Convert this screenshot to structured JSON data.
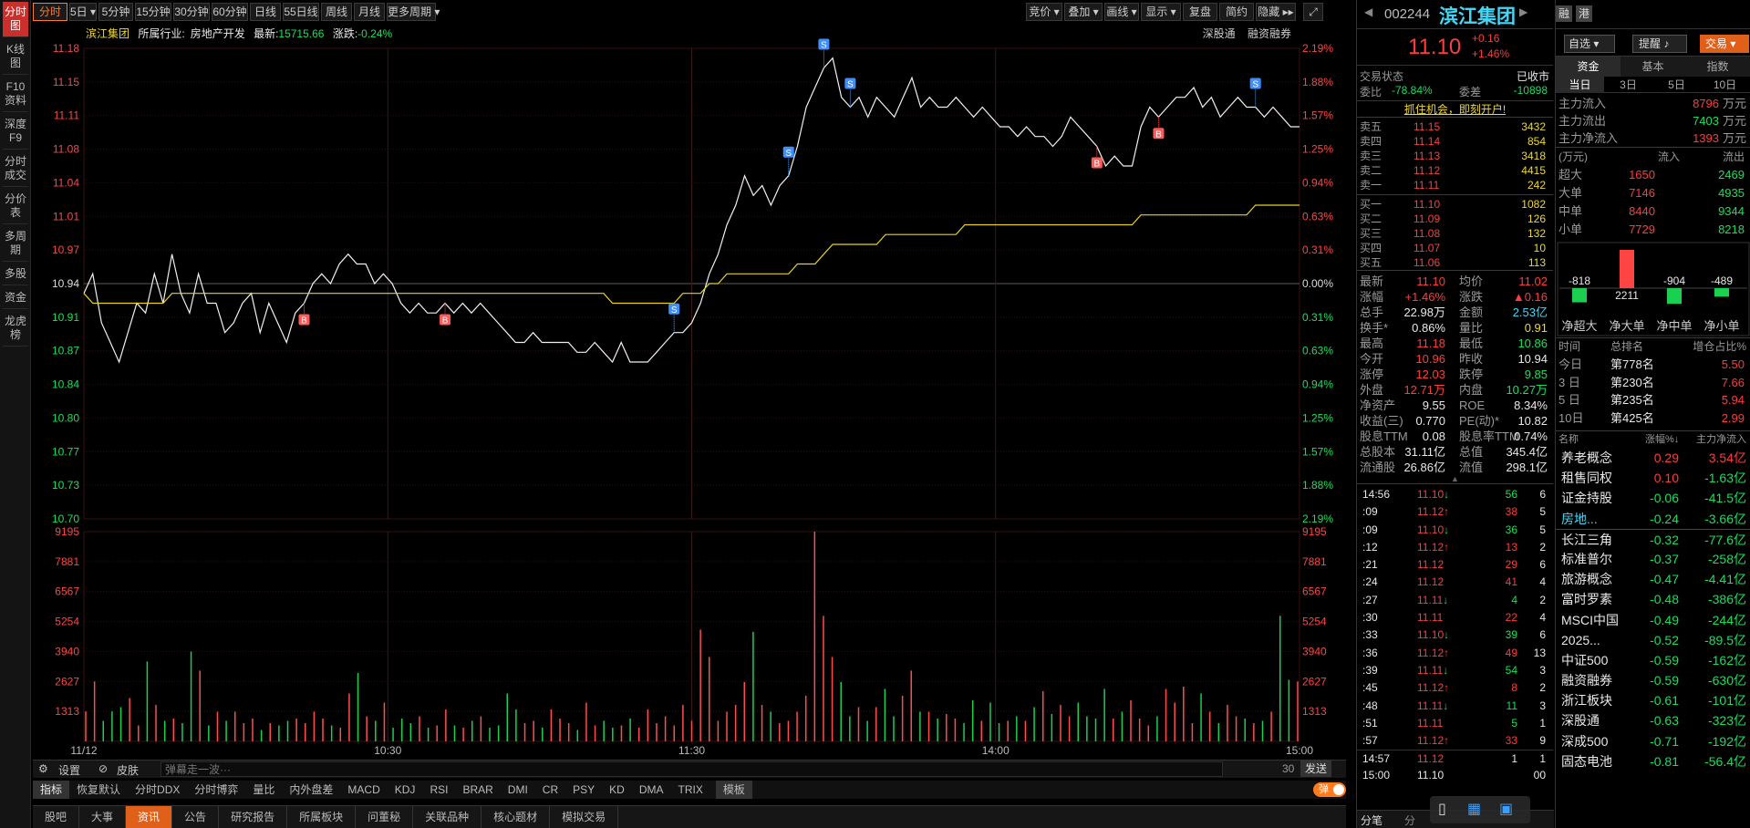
{
  "left_nav": [
    "分时图",
    "K线图",
    "F10资料",
    "深度F9",
    "分时成交",
    "分价表",
    "多周期",
    "多股",
    "资金",
    "龙虎榜"
  ],
  "top_tabs": [
    "分时",
    "5日",
    "5分钟",
    "15分钟",
    "30分钟",
    "60分钟",
    "日线",
    "55日线",
    "周线",
    "月线",
    "更多周期"
  ],
  "top_right": [
    "竞价",
    "叠加",
    "画线",
    "显示",
    "复盘",
    "简约",
    "隐藏"
  ],
  "info": {
    "name": "滨江集团",
    "industry_label": "所属行业:",
    "industry": "房地产开发",
    "latest_label": "最新:",
    "latest": "15715.66",
    "chg_label": "涨跌:",
    "chg": "-0.24%"
  },
  "chart_links": [
    "深股通",
    "融资融券"
  ],
  "chart_data": {
    "type": "line",
    "title": "",
    "price_ticks": [
      "11.18",
      "11.15",
      "11.11",
      "11.08",
      "11.04",
      "11.01",
      "10.97",
      "10.94",
      "10.91",
      "10.87",
      "10.84",
      "10.80",
      "10.77",
      "10.73",
      "10.70"
    ],
    "pct_ticks": [
      "2.19%",
      "1.88%",
      "1.57%",
      "1.25%",
      "0.94%",
      "0.63%",
      "0.31%",
      "0.00%",
      "0.31%",
      "0.63%",
      "0.94%",
      "1.25%",
      "1.57%",
      "1.88%",
      "2.19%"
    ],
    "prev_close": 10.94,
    "ylim": [
      10.7,
      11.18
    ],
    "vol_ticks": [
      "9195",
      "7881",
      "6567",
      "5254",
      "3940",
      "2627",
      "1313"
    ],
    "vol_ylim": [
      0,
      9195
    ],
    "time_labels": [
      "11/12",
      "10:30",
      "11:30",
      "14:00",
      "15:00"
    ],
    "price_series": [
      10.93,
      10.95,
      10.9,
      10.88,
      10.86,
      10.89,
      10.92,
      10.91,
      10.95,
      10.92,
      10.97,
      10.93,
      10.91,
      10.95,
      10.92,
      10.92,
      10.89,
      10.9,
      10.92,
      10.93,
      10.89,
      10.92,
      10.9,
      10.88,
      10.91,
      10.92,
      10.94,
      10.95,
      10.94,
      10.96,
      10.97,
      10.96,
      10.96,
      10.94,
      10.95,
      10.94,
      10.92,
      10.91,
      10.92,
      10.91,
      10.91,
      10.92,
      10.91,
      10.92,
      10.91,
      10.92,
      10.91,
      10.9,
      10.89,
      10.88,
      10.88,
      10.89,
      10.88,
      10.88,
      10.88,
      10.88,
      10.87,
      10.87,
      10.88,
      10.87,
      10.86,
      10.88,
      10.86,
      10.86,
      10.86,
      10.87,
      10.88,
      10.89,
      10.89,
      10.9,
      10.92,
      10.95,
      10.97,
      11.0,
      11.02,
      11.05,
      11.03,
      11.04,
      11.02,
      11.04,
      11.05,
      11.08,
      11.12,
      11.14,
      11.16,
      11.17,
      11.13,
      11.12,
      11.13,
      11.11,
      11.13,
      11.12,
      11.11,
      11.13,
      11.15,
      11.12,
      11.13,
      11.12,
      11.12,
      11.13,
      11.12,
      11.11,
      11.12,
      11.11,
      11.1,
      11.1,
      11.09,
      11.1,
      11.09,
      11.09,
      11.08,
      11.09,
      11.11,
      11.1,
      11.09,
      11.08,
      11.06,
      11.07,
      11.06,
      11.06,
      11.1,
      11.12,
      11.11,
      11.12,
      11.13,
      11.13,
      11.14,
      11.12,
      11.13,
      11.11,
      11.12,
      11.13,
      11.12,
      11.12,
      11.11,
      11.12,
      11.11,
      11.1,
      11.1
    ],
    "avg_series": [
      10.93,
      10.92,
      10.92,
      10.92,
      10.92,
      10.92,
      10.92,
      10.92,
      10.92,
      10.92,
      10.93,
      10.93,
      10.93,
      10.93,
      10.93,
      10.93,
      10.93,
      10.93,
      10.93,
      10.93,
      10.93,
      10.93,
      10.93,
      10.93,
      10.93,
      10.93,
      10.93,
      10.93,
      10.93,
      10.93,
      10.93,
      10.93,
      10.93,
      10.93,
      10.93,
      10.93,
      10.93,
      10.93,
      10.93,
      10.93,
      10.93,
      10.93,
      10.93,
      10.93,
      10.93,
      10.93,
      10.93,
      10.93,
      10.93,
      10.93,
      10.93,
      10.93,
      10.93,
      10.93,
      10.93,
      10.93,
      10.93,
      10.93,
      10.93,
      10.93,
      10.92,
      10.92,
      10.92,
      10.92,
      10.92,
      10.92,
      10.92,
      10.92,
      10.93,
      10.93,
      10.93,
      10.94,
      10.94,
      10.95,
      10.95,
      10.95,
      10.95,
      10.95,
      10.95,
      10.95,
      10.95,
      10.96,
      10.96,
      10.96,
      10.97,
      10.98,
      10.98,
      10.98,
      10.98,
      10.98,
      10.98,
      10.99,
      10.99,
      10.99,
      10.99,
      10.99,
      10.99,
      10.99,
      10.99,
      10.99,
      11.0,
      11.0,
      11.0,
      11.0,
      11.0,
      11.0,
      11.0,
      11.0,
      11.0,
      11.0,
      11.0,
      11.0,
      11.0,
      11.0,
      11.0,
      11.0,
      11.0,
      11.0,
      11.0,
      11.0,
      11.01,
      11.01,
      11.01,
      11.01,
      11.01,
      11.01,
      11.01,
      11.01,
      11.01,
      11.01,
      11.01,
      11.01,
      11.01,
      11.02,
      11.02,
      11.02,
      11.02,
      11.02,
      11.02
    ],
    "volume_series": [
      1313,
      2627,
      900,
      1313,
      1500,
      1900,
      700,
      3500,
      1600,
      900,
      1000,
      800,
      3940,
      3100,
      700,
      1300,
      900,
      1300,
      800,
      1000,
      500,
      800,
      700,
      900,
      1000,
      800,
      1300,
      1000,
      700,
      600,
      2100,
      3000,
      1100,
      900,
      1700,
      600,
      1000,
      800,
      1100,
      600,
      700,
      1400,
      700,
      600,
      900,
      1100,
      600,
      700,
      2100,
      1400,
      800,
      900,
      600,
      1400,
      1000,
      800,
      500,
      1700,
      700,
      900,
      600,
      700,
      1000,
      600,
      1400,
      800,
      1100,
      700,
      1600,
      900,
      4900,
      3700,
      900,
      1300,
      1600,
      2600,
      4800,
      1600,
      1300,
      800,
      900,
      1300,
      2000,
      9195,
      5500,
      3700,
      2600,
      1100,
      1500,
      900,
      1500,
      2300,
      1100,
      2000,
      3100,
      1300,
      1300,
      1000,
      1200,
      1000,
      800,
      1800,
      900,
      1700,
      800,
      900,
      1100,
      900,
      1500,
      2200,
      1200,
      1600,
      1100,
      1700,
      1100,
      1000,
      2300,
      1000,
      1300,
      1800,
      1000,
      700,
      1100,
      2300,
      1700,
      2400,
      800,
      2100,
      1300,
      800,
      1600,
      1100,
      1000,
      800,
      900,
      1300,
      5500,
      2700,
      2627
    ],
    "markers": [
      {
        "label": "B",
        "t": 25
      },
      {
        "label": "B",
        "t": 41
      },
      {
        "label": "S",
        "t": 67
      },
      {
        "label": "S",
        "t": 80
      },
      {
        "label": "S",
        "t": 84
      },
      {
        "label": "S",
        "t": 87
      },
      {
        "label": "B",
        "t": 115
      },
      {
        "label": "B",
        "t": 122
      },
      {
        "label": "S",
        "t": 133
      }
    ]
  },
  "chart_footer": {
    "settings": "设置",
    "skin": "皮肤",
    "input_placeholder": "弹幕走一波···",
    "count": "30",
    "send": "发送"
  },
  "indicators": [
    "指标",
    "恢复默认",
    "分时DDX",
    "分时博弈",
    "量比",
    "内外盘差",
    "MACD",
    "KDJ",
    "RSI",
    "BRAR",
    "DMI",
    "CR",
    "PSY",
    "KD",
    "DMA",
    "TRIX",
    "模板"
  ],
  "danmu_toggle": "弹",
  "bottom_tabs": [
    "股吧",
    "大事",
    "资讯",
    "公告",
    "研究报告",
    "所属板块",
    "问董秘",
    "关联品种",
    "核心题材",
    "模拟交易"
  ],
  "header": {
    "code": "002244",
    "name": "滨江集团",
    "price": "11.10",
    "chg": "+0.16",
    "pct": "+1.46%",
    "tag1": "融",
    "tag2": "港",
    "watchlist": "自选",
    "reminder": "提醒",
    "trade": "交易"
  },
  "status": {
    "label": "交易状态",
    "value": "已收市",
    "webi_label": "委比",
    "webi": "-78.84%",
    "wecha_label": "委差",
    "wecha": "-10898",
    "promo": "抓住机会，即刻开户!"
  },
  "sell_levels": [
    {
      "label": "卖五",
      "price": "11.15",
      "vol": "3432"
    },
    {
      "label": "卖四",
      "price": "11.14",
      "vol": "854"
    },
    {
      "label": "卖三",
      "price": "11.13",
      "vol": "3418"
    },
    {
      "label": "卖二",
      "price": "11.12",
      "vol": "4415"
    },
    {
      "label": "卖一",
      "price": "11.11",
      "vol": "242"
    }
  ],
  "buy_levels": [
    {
      "label": "买一",
      "price": "11.10",
      "vol": "1082"
    },
    {
      "label": "买二",
      "price": "11.09",
      "vol": "126"
    },
    {
      "label": "买三",
      "price": "11.08",
      "vol": "132"
    },
    {
      "label": "买四",
      "price": "11.07",
      "vol": "10"
    },
    {
      "label": "买五",
      "price": "11.06",
      "vol": "113"
    }
  ],
  "quote_stats": [
    [
      "最新",
      "11.10",
      "r",
      "均价",
      "11.02",
      "r"
    ],
    [
      "涨幅",
      "+1.46%",
      "r",
      "涨跌",
      "▲0.16",
      "r"
    ],
    [
      "总手",
      "22.98万",
      "w",
      "金额",
      "2.53亿",
      "c"
    ],
    [
      "换手*",
      "0.86%",
      "w",
      "量比",
      "0.91",
      "y"
    ],
    [
      "最高",
      "11.18",
      "r",
      "最低",
      "10.86",
      "g"
    ],
    [
      "今开",
      "10.96",
      "r",
      "昨收",
      "10.94",
      "w"
    ],
    [
      "涨停",
      "12.03",
      "r",
      "跌停",
      "9.85",
      "g"
    ],
    [
      "外盘",
      "12.71万",
      "r",
      "内盘",
      "10.27万",
      "g"
    ],
    [
      "净资产",
      "9.55",
      "w",
      "ROE",
      "8.34%",
      "w"
    ],
    [
      "收益(三)",
      "0.770",
      "w",
      "PE(动)*",
      "10.82",
      "w"
    ],
    [
      "股息TTM",
      "0.08",
      "w",
      "股息率TTM",
      "0.74%",
      "w"
    ],
    [
      "总股本",
      "31.11亿",
      "w",
      "总值",
      "345.4亿",
      "w"
    ],
    [
      "流通股",
      "26.86亿",
      "w",
      "流值",
      "298.1亿",
      "w"
    ]
  ],
  "ticks": [
    [
      "14:56",
      "11.10",
      "↓",
      "56",
      "6",
      "r",
      "g"
    ],
    [
      ":09",
      "11.12",
      "↑",
      "38",
      "5",
      "r",
      "r"
    ],
    [
      ":09",
      "11.10",
      "↓",
      "36",
      "5",
      "r",
      "g"
    ],
    [
      ":12",
      "11.12",
      "↑",
      "13",
      "2",
      "r",
      "r"
    ],
    [
      ":21",
      "11.12",
      "",
      "29",
      "6",
      "r",
      "r"
    ],
    [
      ":24",
      "11.12",
      "",
      "41",
      "4",
      "r",
      "r"
    ],
    [
      ":27",
      "11.11",
      "↓",
      "4",
      "2",
      "r",
      "g"
    ],
    [
      ":30",
      "11.11",
      "",
      "22",
      "4",
      "r",
      "r"
    ],
    [
      ":33",
      "11.10",
      "↓",
      "39",
      "6",
      "r",
      "g"
    ],
    [
      ":36",
      "11.12",
      "↑",
      "49",
      "13",
      "r",
      "r"
    ],
    [
      ":39",
      "11.11",
      "↓",
      "54",
      "3",
      "r",
      "g"
    ],
    [
      ":45",
      "11.12",
      "↑",
      "8",
      "2",
      "r",
      "r"
    ],
    [
      ":48",
      "11.11",
      "↓",
      "11",
      "3",
      "r",
      "g"
    ],
    [
      ":51",
      "11.11",
      "",
      "5",
      "1",
      "r",
      "g"
    ],
    [
      ":57",
      "11.12",
      "↑",
      "33",
      "9",
      "r",
      "r"
    ],
    [
      "14:57",
      "11.12",
      "",
      "1",
      "1",
      "r",
      "w"
    ],
    [
      "15:00",
      "11.10",
      "",
      "",
      "00",
      "w",
      "w"
    ]
  ],
  "p1_bottom_tabs": [
    "分笔",
    "分"
  ],
  "fund_tabs": [
    "资金",
    "基本",
    "指数"
  ],
  "period_tabs": [
    "当日",
    "3日",
    "5日",
    "10日"
  ],
  "main_flows": [
    {
      "label": "主力流入",
      "value": "8796",
      "unit": "万元",
      "color": "r"
    },
    {
      "label": "主力流出",
      "value": "7403",
      "unit": "万元",
      "color": "g"
    },
    {
      "label": "主力净流入",
      "value": "1393",
      "unit": "万元",
      "color": "r"
    }
  ],
  "flow_table": {
    "unit": "(万元)",
    "in": "流入",
    "out": "流出",
    "rows": [
      {
        "label": "超大",
        "in": "1650",
        "out": "2469"
      },
      {
        "label": "大单",
        "in": "7146",
        "out": "4935"
      },
      {
        "label": "中单",
        "in": "8440",
        "out": "9344"
      },
      {
        "label": "小单",
        "in": "7729",
        "out": "8218"
      }
    ]
  },
  "net_bars": {
    "values": [
      -818,
      2211,
      -904,
      -489
    ],
    "labels": [
      "-818",
      "2211",
      "-904",
      "-489"
    ],
    "captions": [
      "净超大",
      "净大单",
      "净中单",
      "净小单"
    ]
  },
  "rank": {
    "headers": [
      "时间",
      "总排名",
      "增仓占比%"
    ],
    "rows": [
      [
        "今日",
        "第778名",
        "5.50"
      ],
      [
        "3 日",
        "第230名",
        "7.66"
      ],
      [
        "5 日",
        "第235名",
        "5.94"
      ],
      [
        "10日",
        "第425名",
        "2.99"
      ]
    ]
  },
  "sectors": {
    "headers": [
      "名称",
      "涨幅%↓",
      "主力净流入"
    ],
    "rows": [
      [
        "养老概念",
        "0.29",
        "3.54亿",
        "r",
        "r"
      ],
      [
        "租售同权",
        "0.10",
        "-1.63亿",
        "r",
        "g"
      ],
      [
        "证金持股",
        "-0.06",
        "-41.5亿",
        "g",
        "g"
      ],
      [
        "房地...",
        "-0.24",
        "-3.66亿",
        "g",
        "g"
      ],
      [
        "长江三角",
        "-0.32",
        "-77.6亿",
        "g",
        "g"
      ],
      [
        "标准普尔",
        "-0.37",
        "-258亿",
        "g",
        "g"
      ],
      [
        "旅游概念",
        "-0.47",
        "-4.41亿",
        "g",
        "g"
      ],
      [
        "富时罗素",
        "-0.48",
        "-386亿",
        "g",
        "g"
      ],
      [
        "MSCI中国",
        "-0.49",
        "-244亿",
        "g",
        "g"
      ],
      [
        "2025...",
        "-0.52",
        "-89.5亿",
        "g",
        "g"
      ],
      [
        "中证500",
        "-0.59",
        "-162亿",
        "g",
        "g"
      ],
      [
        "融资融券",
        "-0.59",
        "-630亿",
        "g",
        "g"
      ],
      [
        "浙江板块",
        "-0.61",
        "-101亿",
        "g",
        "g"
      ],
      [
        "深股通",
        "-0.63",
        "-323亿",
        "g",
        "g"
      ],
      [
        "深成500",
        "-0.71",
        "-192亿",
        "g",
        "g"
      ],
      [
        "固态电池",
        "-0.81",
        "-56.4亿",
        "g",
        "g"
      ]
    ]
  }
}
